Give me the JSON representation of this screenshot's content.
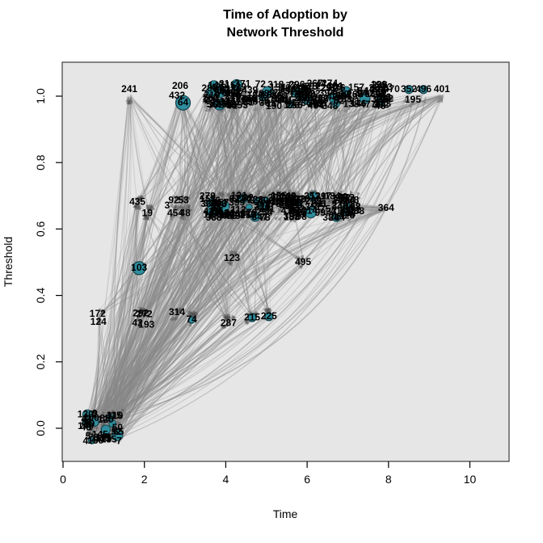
{
  "title": {
    "line1": "Time of Adoption by",
    "line2": "Network Threshold"
  },
  "axes": {
    "x": {
      "label": "Time",
      "ticks": [
        "0",
        "2",
        "4",
        "6",
        "8",
        "10"
      ],
      "tick_values": [
        0,
        2,
        4,
        6,
        8,
        10
      ]
    },
    "y": {
      "label": "Threshold",
      "ticks": [
        "0.0",
        "0.2",
        "0.4",
        "0.6",
        "0.8",
        "1.0"
      ],
      "tick_values": [
        0,
        0.2,
        0.4,
        0.6,
        0.8,
        1.0
      ]
    }
  },
  "chart_data": {
    "type": "scatter",
    "subtype": "network-graph",
    "title": "Time of Adoption by Network Threshold",
    "xlabel": "Time",
    "ylabel": "Threshold",
    "xlim": [
      0,
      11
    ],
    "ylim": [
      -0.06,
      1.08
    ],
    "grid": false,
    "legend": "none",
    "colors": {
      "plot_bg": "#e6e6e6",
      "box_stroke": "#3c3c3c",
      "edge": "#878787",
      "arrow": "#4a4a4a",
      "node_fill": "#2f8e9e",
      "node_stroke": "#123f47",
      "label": "#000000"
    },
    "nodes": [
      {
        "label": "241",
        "t": 1.63,
        "th": 1.02
      },
      {
        "label": "206",
        "t": 2.88,
        "th": 1.03
      },
      {
        "label": "432",
        "t": 2.8,
        "th": 1.0
      },
      {
        "label": "64",
        "t": 2.95,
        "th": 0.98,
        "teal": true,
        "r": 9
      },
      {
        "label": "322",
        "t": 7.78,
        "th": 0.99
      },
      {
        "label": "470",
        "t": 8.08,
        "th": 1.02
      },
      {
        "label": "352",
        "t": 8.5,
        "th": 1.02,
        "teal": true,
        "r": 5
      },
      {
        "label": "496",
        "t": 8.86,
        "th": 1.02,
        "teal": true,
        "r": 5
      },
      {
        "label": "401",
        "t": 9.31,
        "th": 1.02
      },
      {
        "label": "195",
        "t": 8.6,
        "th": 0.988
      },
      {
        "label": "435",
        "t": 1.83,
        "th": 0.68
      },
      {
        "label": "19",
        "t": 2.07,
        "th": 0.647
      },
      {
        "label": "92",
        "t": 2.72,
        "th": 0.686
      },
      {
        "label": "53",
        "t": 2.96,
        "th": 0.686
      },
      {
        "label": "3",
        "t": 2.56,
        "th": 0.669
      },
      {
        "label": "454",
        "t": 2.76,
        "th": 0.647
      },
      {
        "label": "48",
        "t": 3.0,
        "th": 0.647
      },
      {
        "label": "204",
        "t": 6.99,
        "th": 0.684
      },
      {
        "label": "41",
        "t": 6.71,
        "th": 0.652
      },
      {
        "label": "62",
        "t": 6.93,
        "th": 0.65,
        "teal": true,
        "r": 4
      },
      {
        "label": "238",
        "t": 7.21,
        "th": 0.652
      },
      {
        "label": "364",
        "t": 7.94,
        "th": 0.662
      },
      {
        "label": "103",
        "t": 1.87,
        "th": 0.482,
        "teal": true,
        "r": 8
      },
      {
        "label": "123",
        "t": 4.15,
        "th": 0.511
      },
      {
        "label": "495",
        "t": 5.9,
        "th": 0.499
      },
      {
        "label": "172",
        "t": 0.85,
        "th": 0.343
      },
      {
        "label": "124",
        "t": 0.87,
        "th": 0.319
      },
      {
        "label": "292",
        "t": 1.91,
        "th": 0.345
      },
      {
        "label": "272",
        "t": 2.0,
        "th": 0.342
      },
      {
        "label": "42",
        "t": 1.83,
        "th": 0.316
      },
      {
        "label": "193",
        "t": 2.05,
        "th": 0.311
      },
      {
        "label": "314",
        "t": 2.8,
        "th": 0.348
      },
      {
        "label": "74",
        "t": 3.16,
        "th": 0.326,
        "teal": true,
        "r": 4
      },
      {
        "label": "287",
        "t": 4.07,
        "th": 0.316
      },
      {
        "label": "215",
        "t": 4.65,
        "th": 0.333,
        "teal": true,
        "r": 5
      },
      {
        "label": "225",
        "t": 5.06,
        "th": 0.336,
        "teal": true,
        "r": 5
      }
    ],
    "clusters": [
      {
        "key": "topA",
        "name": "top-cluster-1",
        "t": [
          3.52,
          4.61
        ],
        "th": [
          0.968,
          1.039
        ],
        "teal_dots": 5,
        "labels": [
          "302",
          "87",
          "151",
          "9",
          "263",
          "410",
          "56",
          "178",
          "334",
          "21",
          "467",
          "95",
          "288",
          "143",
          "371",
          "66",
          "219",
          "482",
          "107",
          "356",
          "31",
          "244",
          "129",
          "398",
          "73",
          "412",
          "258",
          "16",
          "337",
          "91",
          "186",
          "453",
          "278",
          "108",
          "349",
          "27",
          "161",
          "439"
        ]
      },
      {
        "key": "topB",
        "name": "top-cluster-2",
        "t": [
          4.71,
          6.36
        ],
        "th": [
          0.968,
          1.039
        ],
        "teal_dots": 6,
        "labels": [
          "118",
          "393",
          "72",
          "256",
          "11",
          "428",
          "185",
          "339",
          "208",
          "77",
          "346",
          "154",
          "489",
          "36",
          "267",
          "121",
          "404",
          "58",
          "232",
          "312",
          "168",
          "44",
          "379",
          "141",
          "296",
          "86",
          "417",
          "222",
          "13",
          "359",
          "104",
          "275",
          "190",
          "461",
          "39",
          "328",
          "148",
          "253",
          "97",
          "386",
          "211",
          "68",
          "304",
          "136",
          "441",
          "24",
          "176",
          "318"
        ]
      },
      {
        "key": "topC",
        "name": "top-cluster-3",
        "t": [
          6.45,
          7.94
        ],
        "th": [
          0.968,
          1.039
        ],
        "teal_dots": 5,
        "labels": [
          "283",
          "59",
          "342",
          "127",
          "471",
          "17",
          "236",
          "394",
          "82",
          "157",
          "308",
          "46",
          "425",
          "199",
          "268",
          "113",
          "383",
          "29",
          "348",
          "164",
          "477",
          "94",
          "251",
          "138",
          "407",
          "71",
          "316",
          "183",
          "54",
          "297",
          "228",
          "419",
          "146",
          "37",
          "362",
          "109",
          "274",
          "201",
          "88",
          "331",
          "156",
          "243"
        ]
      },
      {
        "key": "midA",
        "name": "mid-cluster-1",
        "t": [
          3.54,
          4.63
        ],
        "th": [
          0.633,
          0.7
        ],
        "teal_dots": 5,
        "labels": [
          "309",
          "84",
          "153",
          "12",
          "266",
          "413",
          "57",
          "179",
          "336",
          "22",
          "468",
          "96",
          "289",
          "144",
          "372",
          "67",
          "221",
          "483",
          "111",
          "357",
          "32",
          "246",
          "131",
          "399",
          "76",
          "414",
          "259",
          "18",
          "338",
          "93",
          "187",
          "456",
          "279",
          "112"
        ]
      },
      {
        "key": "midB",
        "name": "mid-cluster-2",
        "t": [
          4.71,
          5.92
        ],
        "th": [
          0.633,
          0.7
        ],
        "teal_dots": 6,
        "labels": [
          "119",
          "396",
          "78",
          "257",
          "14",
          "429",
          "188",
          "341",
          "209",
          "79",
          "347",
          "155",
          "491",
          "38",
          "269",
          "122",
          "406",
          "61",
          "233",
          "313",
          "169",
          "47",
          "381",
          "142",
          "298",
          "89",
          "418",
          "223",
          "15",
          "361",
          "106",
          "276",
          "191",
          "462",
          "411",
          "329",
          "149",
          "254",
          "98",
          "387"
        ]
      },
      {
        "key": "midC",
        "name": "mid-cluster-3",
        "t": [
          6.06,
          7.23
        ],
        "th": [
          0.633,
          0.7
        ],
        "teal_dots": 4,
        "labels": [
          "284",
          "63",
          "343",
          "128",
          "472",
          "23",
          "237",
          "397",
          "83",
          "158",
          "311",
          "49",
          "426",
          "202",
          "271",
          "114",
          "384",
          "33",
          "351",
          "166",
          "478",
          "99",
          "252",
          "139",
          "408",
          "75",
          "317",
          "184",
          "55",
          "299"
        ]
      },
      {
        "key": "bottom",
        "name": "origin-cluster",
        "t": [
          0.55,
          1.43
        ],
        "th": [
          -0.046,
          0.044
        ],
        "teal_dots": 8,
        "labels": [
          "1",
          "2",
          "4",
          "5",
          "6",
          "7",
          "8",
          "10",
          "26",
          "35",
          "40",
          "43",
          "50",
          "52",
          "65",
          "70",
          "81",
          "85",
          "90",
          "100",
          "105",
          "110",
          "115",
          "120",
          "125",
          "130",
          "135",
          "140",
          "145",
          "150"
        ]
      }
    ],
    "point_groups": {
      "topL": [
        [
          1.63,
          1.0
        ],
        [
          2.88,
          1.0
        ],
        [
          2.95,
          0.985
        ]
      ],
      "topR": [
        [
          8.08,
          1.0
        ],
        [
          8.5,
          1.0
        ],
        [
          8.86,
          1.0
        ],
        [
          9.31,
          1.0
        ],
        [
          8.6,
          0.99
        ]
      ],
      "midL": [
        [
          1.83,
          0.68
        ],
        [
          2.07,
          0.65
        ]
      ],
      "mid1": [
        [
          2.72,
          0.68
        ],
        [
          2.96,
          0.68
        ],
        [
          2.76,
          0.65
        ],
        [
          3.0,
          0.65
        ]
      ],
      "m364": [
        [
          7.94,
          0.662
        ]
      ],
      "n401": [
        [
          9.31,
          1.0
        ]
      ],
      "half": [
        [
          1.87,
          0.48
        ],
        [
          4.15,
          0.51
        ],
        [
          5.9,
          0.5
        ]
      ],
      "third": [
        [
          0.85,
          0.34
        ],
        [
          1.91,
          0.34
        ],
        [
          2.8,
          0.34
        ],
        [
          3.16,
          0.33
        ],
        [
          4.07,
          0.32
        ],
        [
          4.65,
          0.33
        ],
        [
          5.06,
          0.34
        ]
      ]
    },
    "edge_bundles": [
      [
        "bottom",
        "topL",
        22,
        0
      ],
      [
        "bottom",
        "topA",
        45,
        0
      ],
      [
        "bottom",
        "topB",
        45,
        0
      ],
      [
        "bottom",
        "topC",
        28,
        0
      ],
      [
        "bottom",
        "topR",
        12,
        0.25
      ],
      [
        "bottom",
        "midL",
        25,
        0
      ],
      [
        "bottom",
        "mid1",
        15,
        0
      ],
      [
        "bottom",
        "midA",
        35,
        0
      ],
      [
        "bottom",
        "midB",
        25,
        0
      ],
      [
        "bottom",
        "midC",
        12,
        0
      ],
      [
        "bottom",
        "third",
        30,
        0
      ],
      [
        "bottom",
        "half",
        8,
        0
      ],
      [
        "topA",
        "midA",
        45,
        0
      ],
      [
        "topA",
        "midB",
        25,
        0
      ],
      [
        "topA",
        "mid1",
        15,
        0
      ],
      [
        "topA",
        "midL",
        10,
        0
      ],
      [
        "topB",
        "midA",
        40,
        0
      ],
      [
        "topB",
        "midB",
        45,
        0
      ],
      [
        "topB",
        "midC",
        18,
        0
      ],
      [
        "topB",
        "mid1",
        10,
        0
      ],
      [
        "topC",
        "midB",
        28,
        0
      ],
      [
        "topC",
        "midC",
        32,
        0
      ],
      [
        "topC",
        "midA",
        14,
        0
      ],
      [
        "topL",
        "midL",
        10,
        0
      ],
      [
        "topL",
        "mid1",
        8,
        0
      ],
      [
        "topL",
        "midA",
        14,
        0
      ],
      [
        "topL",
        "third",
        10,
        0
      ],
      [
        "midA",
        "third",
        18,
        0
      ],
      [
        "midB",
        "third",
        12,
        0
      ],
      [
        "mid1",
        "third",
        10,
        0
      ],
      [
        "midL",
        "third",
        8,
        0
      ],
      [
        "midA",
        "half",
        8,
        0
      ],
      [
        "topB",
        "half",
        8,
        0
      ],
      [
        "n401",
        "bottom",
        10,
        0.28
      ],
      [
        "n401",
        "third",
        8,
        0.22
      ],
      [
        "n401",
        "midC",
        6,
        0.1
      ],
      [
        "m364",
        "bottom",
        8,
        0.18
      ],
      [
        "m364",
        "third",
        6,
        0.12
      ],
      [
        "m364",
        "midA",
        10,
        0
      ],
      [
        "m364",
        "midB",
        8,
        0
      ],
      [
        "topR",
        "midC",
        10,
        0.08
      ],
      [
        "topR",
        "bottom",
        6,
        0.3
      ],
      [
        "topA",
        "third",
        10,
        0
      ],
      [
        "topB",
        "third",
        8,
        0
      ]
    ]
  }
}
